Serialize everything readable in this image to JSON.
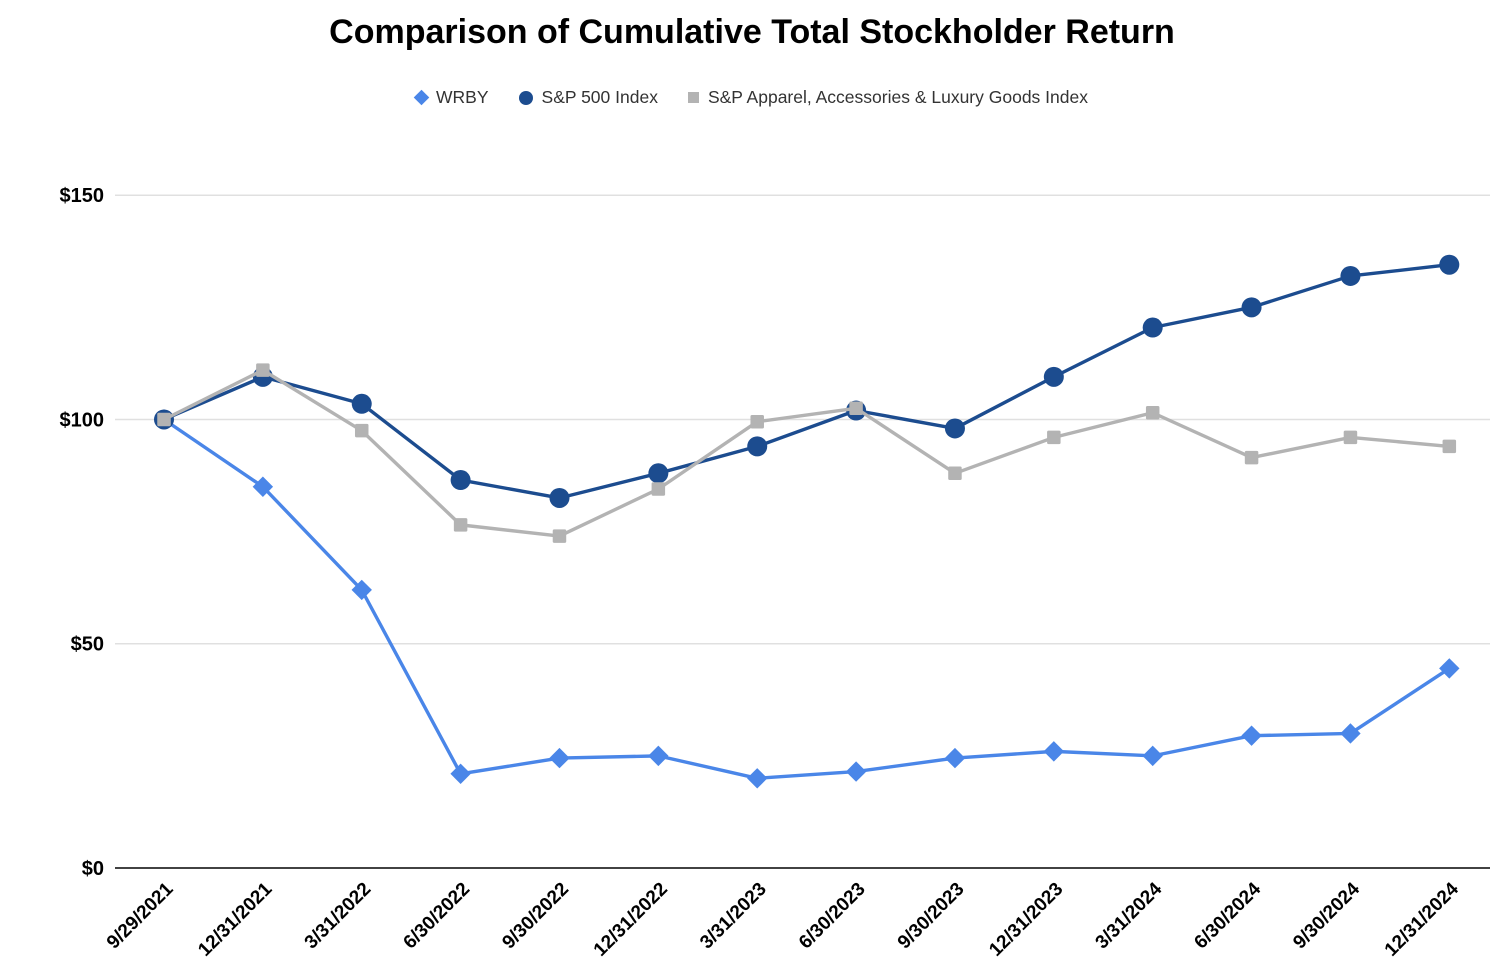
{
  "title": "Comparison of Cumulative Total Stockholder Return",
  "legend": [
    {
      "label": "WRBY",
      "marker": "diamond",
      "color": "#4a86e8"
    },
    {
      "label": "S&P 500 Index",
      "marker": "circle",
      "color": "#1c4c8f"
    },
    {
      "label": "S&P Apparel, Accessories & Luxury Goods Index",
      "marker": "square",
      "color": "#b3b3b3"
    }
  ],
  "chart_data": {
    "type": "line",
    "title": "Comparison of Cumulative Total Stockholder Return",
    "x": [
      "9/29/2021",
      "12/31/2021",
      "3/31/2022",
      "6/30/2022",
      "9/30/2022",
      "12/31/2022",
      "3/31/2023",
      "6/30/2023",
      "9/30/2023",
      "12/31/2023",
      "3/31/2024",
      "6/30/2024",
      "9/30/2024",
      "12/31/2024"
    ],
    "series": [
      {
        "name": "WRBY",
        "marker": "diamond",
        "color": "#4a86e8",
        "values": [
          100,
          85,
          62,
          21,
          24.5,
          25,
          20,
          21.5,
          24.5,
          26,
          25,
          29.5,
          30,
          44.5
        ]
      },
      {
        "name": "S&P 500 Index",
        "marker": "circle",
        "color": "#1c4c8f",
        "values": [
          100,
          109.5,
          103.5,
          86.5,
          82.5,
          88,
          94,
          102,
          98,
          109.5,
          120.5,
          125,
          132,
          134.5
        ]
      },
      {
        "name": "S&P Apparel, Accessories & Luxury Goods Index",
        "marker": "square",
        "color": "#b3b3b3",
        "values": [
          100,
          111,
          97.5,
          76.5,
          74,
          84.5,
          99.5,
          102.5,
          88,
          96,
          101.5,
          91.5,
          96,
          94
        ]
      }
    ],
    "xlabel": "",
    "ylabel": "",
    "ylim": [
      0,
      150
    ],
    "y_ticks": [
      {
        "label": "$0",
        "value": 0
      },
      {
        "label": "$50",
        "value": 50
      },
      {
        "label": "$100",
        "value": 100
      },
      {
        "label": "$150",
        "value": 150
      }
    ],
    "grid": true,
    "legend_position": "top",
    "currency_prefix": "$"
  },
  "colors": {
    "background": "#ffffff",
    "gridline": "#e0e0e0",
    "axis_line": "#424242",
    "title_text": "#000000",
    "tick_text": "#000000",
    "legend_text": "#333333"
  }
}
